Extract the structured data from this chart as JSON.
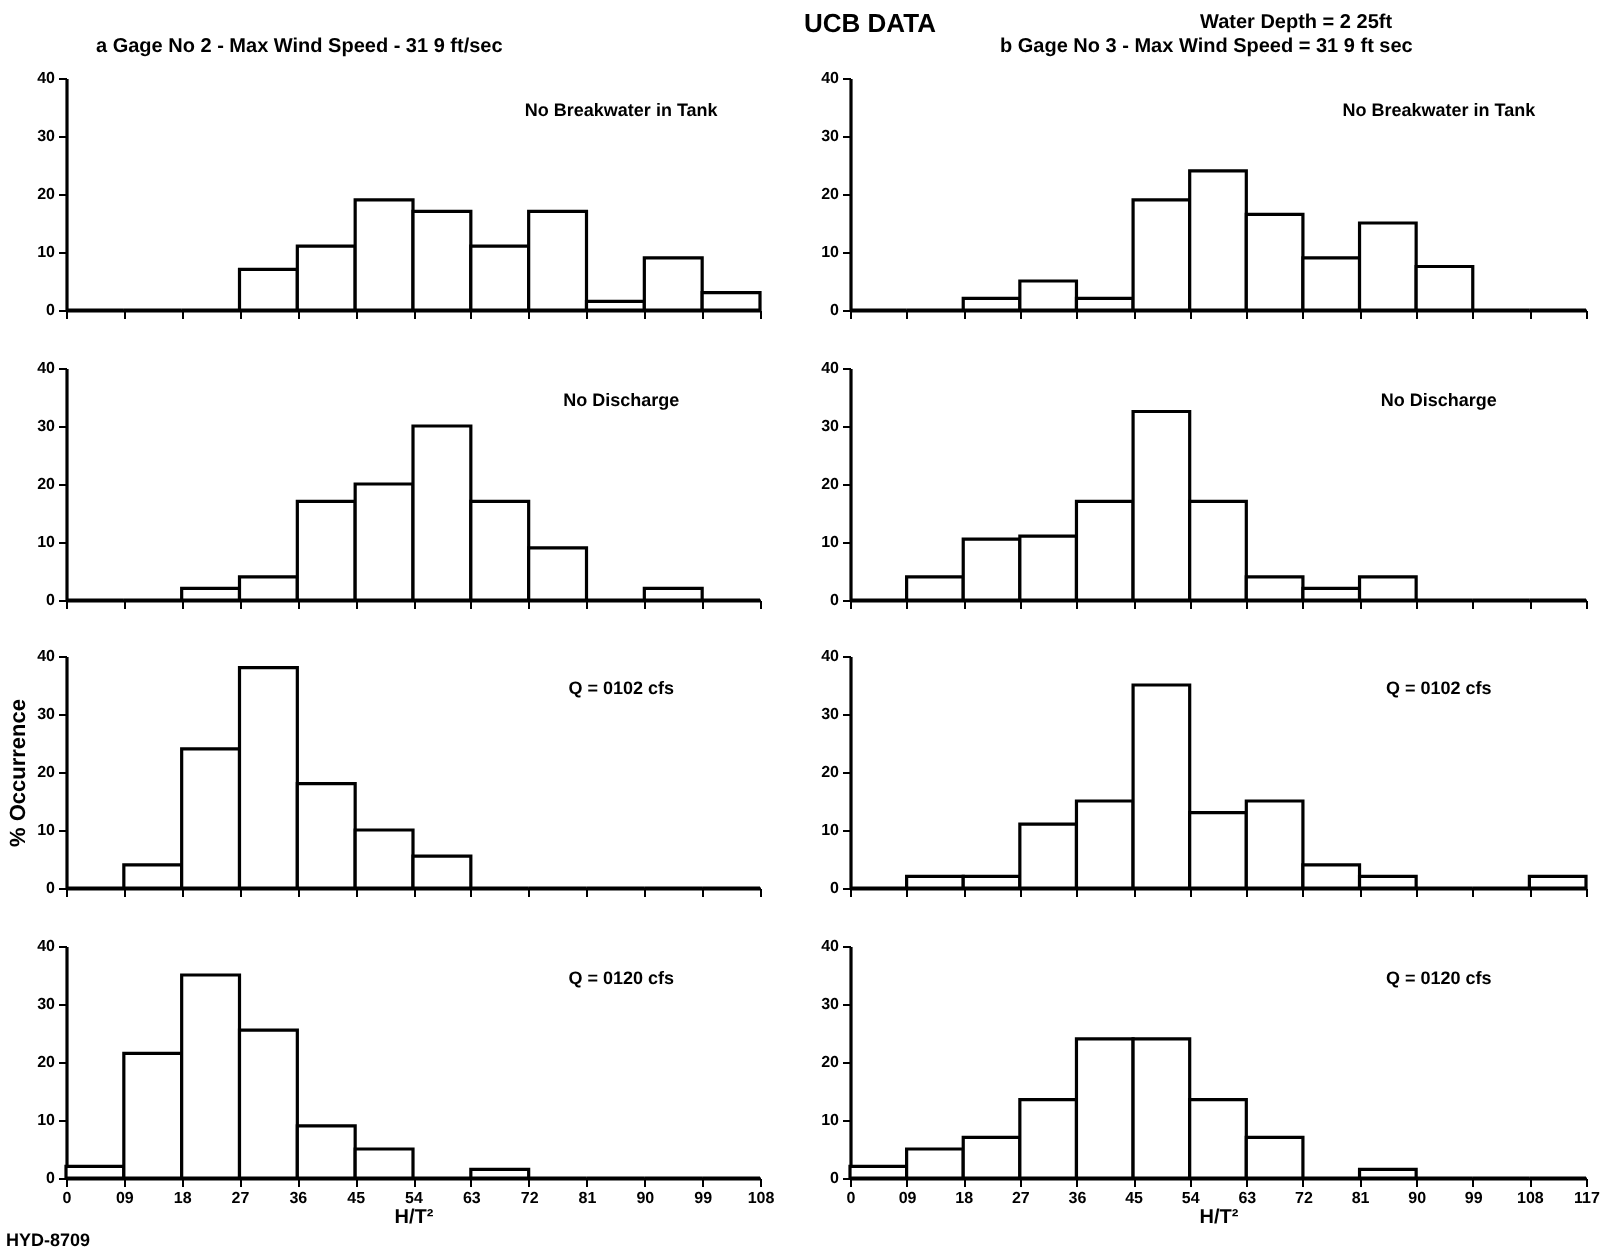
{
  "chart_data": [
    {
      "type": "histogram",
      "title": "a  Gage No 2 - Max Wind Speed - 31 9 ft/sec",
      "annotations": [
        "No Breakwater in Tank"
      ],
      "bins": [
        0,
        9,
        18,
        27,
        36,
        45,
        54,
        63,
        72,
        81,
        90,
        99,
        108
      ],
      "values": [
        0,
        0,
        0,
        7,
        11,
        19,
        17,
        11,
        17,
        1.5,
        9,
        3
      ],
      "color": "#000000",
      "xlim": [
        0,
        108
      ],
      "xticks": [
        0,
        9,
        18,
        27,
        36,
        45,
        54,
        63,
        72,
        81,
        90,
        99,
        108
      ],
      "ylim": [
        0,
        40
      ],
      "yticks": [
        0,
        10,
        20,
        30,
        40
      ],
      "tick_labels": "y"
    },
    {
      "type": "histogram",
      "title": "UCB DATA",
      "subtitle": "b  Gage No 3 - Max Wind Speed = 31 9 ft sec",
      "annotations": [
        "No Breakwater in Tank",
        "Water Depth = 2 25ft"
      ],
      "bins": [
        0,
        9,
        18,
        27,
        36,
        45,
        54,
        63,
        72,
        81,
        90,
        99,
        108,
        117
      ],
      "values": [
        0,
        0,
        2,
        5,
        2,
        19,
        24,
        16.5,
        9,
        15,
        7.5,
        0,
        0
      ],
      "color": "#000000",
      "xlim": [
        0,
        117
      ],
      "xticks": [
        0,
        9,
        18,
        27,
        36,
        45,
        54,
        63,
        72,
        81,
        90,
        99,
        108,
        117
      ],
      "ylim": [
        0,
        40
      ],
      "yticks": [
        0,
        10,
        20,
        30,
        40
      ],
      "tick_labels": "y"
    },
    {
      "type": "histogram",
      "annotations": [
        "No Discharge"
      ],
      "bins": [
        0,
        9,
        18,
        27,
        36,
        45,
        54,
        63,
        72,
        81,
        90,
        99,
        108
      ],
      "values": [
        0,
        0,
        2,
        4,
        17,
        20,
        30,
        17,
        9,
        0,
        2,
        0
      ],
      "color": "#000000",
      "xlim": [
        0,
        108
      ],
      "xticks": [
        0,
        9,
        18,
        27,
        36,
        45,
        54,
        63,
        72,
        81,
        90,
        99,
        108
      ],
      "ylim": [
        0,
        40
      ],
      "yticks": [
        0,
        10,
        20,
        30,
        40
      ],
      "tick_labels": "y"
    },
    {
      "type": "histogram",
      "annotations": [
        "No Discharge"
      ],
      "bins": [
        0,
        9,
        18,
        27,
        36,
        45,
        54,
        63,
        72,
        81,
        90,
        99,
        108,
        117
      ],
      "values": [
        0,
        4,
        10.5,
        11,
        17,
        32.5,
        17,
        4,
        2,
        4,
        0,
        0,
        0
      ],
      "color": "#000000",
      "xlim": [
        0,
        117
      ],
      "xticks": [
        0,
        9,
        18,
        27,
        36,
        45,
        54,
        63,
        72,
        81,
        90,
        99,
        108,
        117
      ],
      "ylim": [
        0,
        40
      ],
      "yticks": [
        0,
        10,
        20,
        30,
        40
      ],
      "tick_labels": "y"
    },
    {
      "type": "histogram",
      "ylabel": "% Occurrence",
      "annotations": [
        "Q = 0102 cfs"
      ],
      "bins": [
        0,
        9,
        18,
        27,
        36,
        45,
        54,
        63,
        72,
        81,
        90,
        99,
        108
      ],
      "values": [
        0,
        4,
        24,
        38,
        18,
        10,
        5.5,
        0,
        0,
        0,
        0,
        0
      ],
      "color": "#000000",
      "xlim": [
        0,
        108
      ],
      "xticks": [
        0,
        9,
        18,
        27,
        36,
        45,
        54,
        63,
        72,
        81,
        90,
        99,
        108
      ],
      "ylim": [
        0,
        40
      ],
      "yticks": [
        0,
        10,
        20,
        30,
        40
      ],
      "tick_labels": "y"
    },
    {
      "type": "histogram",
      "annotations": [
        "Q = 0102 cfs"
      ],
      "bins": [
        0,
        9,
        18,
        27,
        36,
        45,
        54,
        63,
        72,
        81,
        90,
        99,
        108,
        117
      ],
      "values": [
        0,
        2,
        2,
        11,
        15,
        35,
        13,
        15,
        4,
        2,
        0,
        0,
        2
      ],
      "color": "#000000",
      "xlim": [
        0,
        117
      ],
      "xticks": [
        0,
        9,
        18,
        27,
        36,
        45,
        54,
        63,
        72,
        81,
        90,
        99,
        108,
        117
      ],
      "ylim": [
        0,
        40
      ],
      "yticks": [
        0,
        10,
        20,
        30,
        40
      ],
      "tick_labels": "y"
    },
    {
      "type": "histogram",
      "xlabel": "H/T²",
      "annotations": [
        "Q = 0120 cfs",
        "HYD-8709"
      ],
      "bins": [
        0,
        9,
        18,
        27,
        36,
        45,
        54,
        63,
        72,
        81,
        90,
        99,
        108
      ],
      "values": [
        2,
        21.5,
        35,
        25.5,
        9,
        5,
        0,
        1.5,
        0,
        0,
        0,
        0
      ],
      "color": "#000000",
      "xlim": [
        0,
        108
      ],
      "xticks": [
        0,
        {
          "value": 9,
          "label": "09"
        },
        18,
        27,
        36,
        45,
        54,
        63,
        72,
        81,
        90,
        99,
        108
      ],
      "ylim": [
        0,
        40
      ],
      "yticks": [
        0,
        10,
        20,
        30,
        40
      ]
    },
    {
      "type": "histogram",
      "xlabel": "H/T²",
      "annotations": [
        "Q = 0120 cfs"
      ],
      "bins": [
        0,
        9,
        18,
        27,
        36,
        45,
        54,
        63,
        72,
        81,
        90,
        99,
        108,
        117
      ],
      "values": [
        2,
        5,
        7,
        13.5,
        24,
        24,
        13.5,
        7,
        0,
        1.5,
        0,
        0,
        0
      ],
      "color": "#000000",
      "xlim": [
        0,
        117
      ],
      "xticks": [
        0,
        {
          "value": 9,
          "label": "09"
        },
        18,
        27,
        36,
        45,
        54,
        63,
        72,
        81,
        90,
        99,
        108,
        117
      ],
      "ylim": [
        0,
        40
      ],
      "yticks": [
        0,
        10,
        20,
        30,
        40
      ]
    }
  ]
}
